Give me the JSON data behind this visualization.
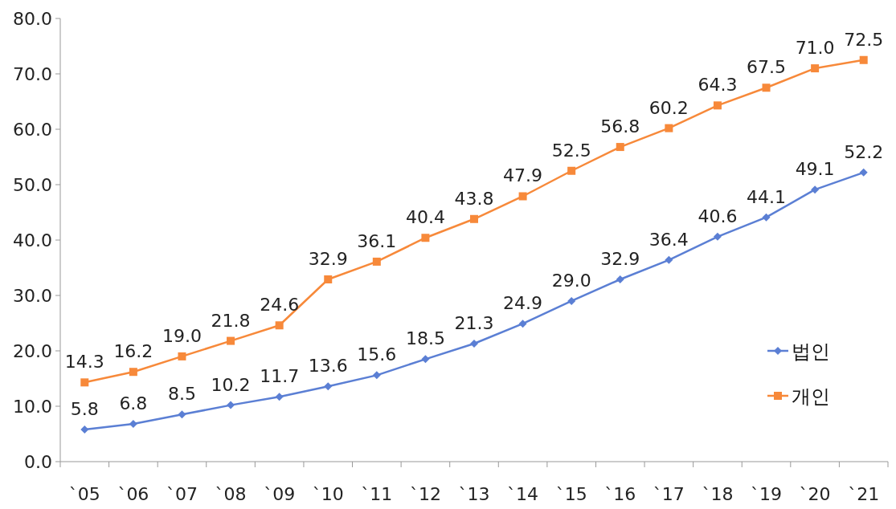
{
  "chart_data": {
    "type": "line",
    "categories": [
      "`05",
      "`06",
      "`07",
      "`08",
      "`09",
      "`10",
      "`11",
      "`12",
      "`13",
      "`14",
      "`15",
      "`16",
      "`17",
      "`18",
      "`19",
      "`20",
      "`21"
    ],
    "series": [
      {
        "name": "법인",
        "color": "#5b7fd4",
        "marker": "diamond",
        "values": [
          5.8,
          6.8,
          8.5,
          10.2,
          11.7,
          13.6,
          15.6,
          18.5,
          21.3,
          24.9,
          29.0,
          32.9,
          36.4,
          40.6,
          44.1,
          49.1,
          52.2
        ],
        "value_labels": [
          "5.8",
          "6.8",
          "8.5",
          "10.2",
          "11.7",
          "13.6",
          "15.6",
          "18.5",
          "21.3",
          "24.9",
          "29.0",
          "32.9",
          "36.4",
          "40.6",
          "44.1",
          "49.1",
          "52.2"
        ]
      },
      {
        "name": "개인",
        "color": "#f7893a",
        "marker": "square",
        "values": [
          14.3,
          16.2,
          19.0,
          21.8,
          24.6,
          32.9,
          36.1,
          40.4,
          43.8,
          47.9,
          52.5,
          56.8,
          60.2,
          64.3,
          67.5,
          71.0,
          72.5
        ],
        "value_labels": [
          "14.3",
          "16.2",
          "19.0",
          "21.8",
          "24.6",
          "32.9",
          "36.1",
          "40.4",
          "43.8",
          "47.9",
          "52.5",
          "56.8",
          "60.2",
          "64.3",
          "67.5",
          "71.0",
          "72.5"
        ]
      }
    ],
    "ylim": [
      0,
      80
    ],
    "yticks": [
      {
        "value": 0,
        "label": "0.0"
      },
      {
        "value": 10,
        "label": "10.0"
      },
      {
        "value": 20,
        "label": "20.0"
      },
      {
        "value": 30,
        "label": "30.0"
      },
      {
        "value": 40,
        "label": "40.0"
      },
      {
        "value": 50,
        "label": "50.0"
      },
      {
        "value": 60,
        "label": "60.0"
      },
      {
        "value": 70,
        "label": "70.0"
      },
      {
        "value": 80,
        "label": "80.0"
      }
    ],
    "grid": false,
    "legend": "right",
    "line_style": "solid"
  }
}
